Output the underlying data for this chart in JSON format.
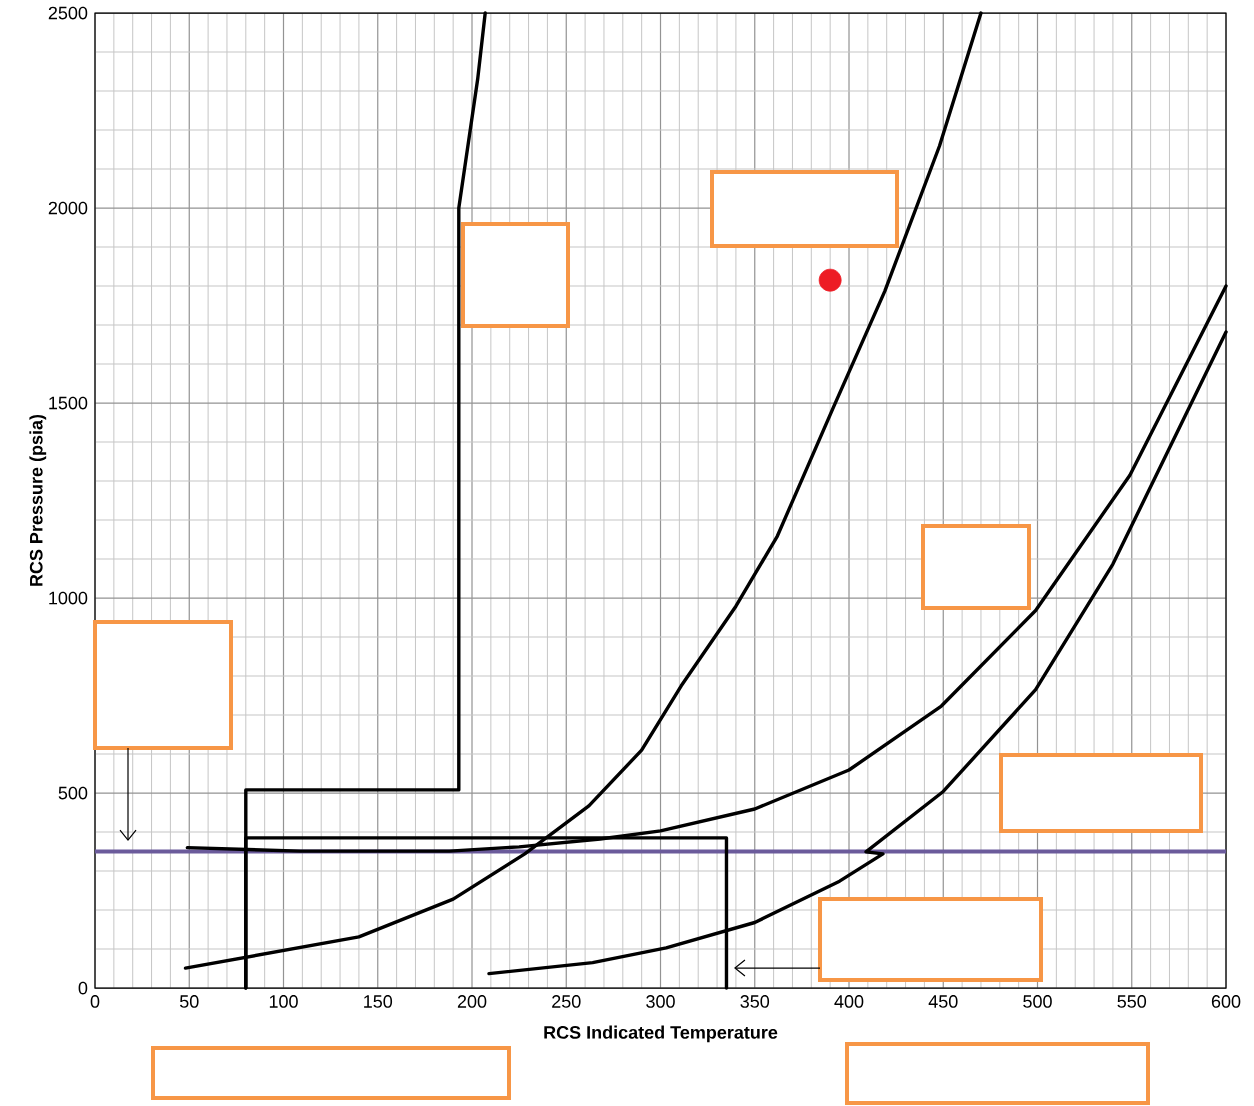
{
  "chart_data": {
    "type": "line",
    "xlabel": "RCS Indicated Temperature",
    "ylabel": "RCS Pressure (psia)",
    "xlim": [
      0,
      600
    ],
    "xticks": [
      0,
      50,
      100,
      150,
      200,
      250,
      300,
      350,
      400,
      450,
      500,
      550,
      600
    ],
    "ylim": [
      0,
      2500
    ],
    "yticks": [
      0,
      500,
      1000,
      1500,
      2000,
      2500
    ],
    "grid": true,
    "series": [
      {
        "color": "#000000",
        "x": [
          80,
          80,
          193,
          193,
          203,
          207
        ],
        "values": [
          0,
          508,
          508,
          2000,
          2330,
          2500
        ]
      },
      {
        "color": "#000000",
        "x": [
          80,
          80,
          335,
          335
        ],
        "values": [
          0,
          385,
          385,
          0
        ]
      },
      {
        "color": "#000000",
        "x": [
          48,
          140,
          190,
          228,
          262,
          290,
          311,
          340,
          362,
          392,
          419,
          448,
          470
        ],
        "values": [
          51,
          131,
          228,
          344,
          467,
          610,
          775,
          979,
          1159,
          1492,
          1787,
          2159,
          2500
        ]
      },
      {
        "color": "#000000",
        "x": [
          49,
          109,
          188,
          225,
          268,
          300,
          350,
          400,
          449,
          499,
          549,
          600
        ],
        "values": [
          360,
          351,
          351,
          362,
          382,
          403,
          459,
          559,
          723,
          968,
          1315,
          1800
        ]
      },
      {
        "color": "#000000",
        "x": [
          209,
          264,
          303,
          350,
          395,
          418,
          409,
          450,
          499,
          540,
          600
        ],
        "values": [
          37,
          65,
          103,
          168,
          274,
          344,
          349,
          504,
          765,
          1087,
          1682
        ]
      },
      {
        "type": "scatter",
        "marker": "circle",
        "color": "#ed1c24",
        "x": [
          390
        ],
        "values": [
          1815
        ]
      }
    ],
    "ref_lines": [
      {
        "axis": "y",
        "value": 350,
        "color": "#6b5b9b"
      }
    ]
  }
}
